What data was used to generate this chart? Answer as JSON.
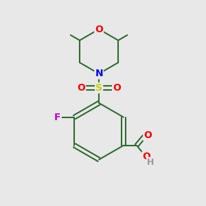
{
  "background_color": "#e8e8e8",
  "bond_color": "#2d6b2d",
  "bond_width": 1.5,
  "atom_colors": {
    "O": "#ff0000",
    "N": "#0000ff",
    "S": "#cccc00",
    "F": "#cc00cc",
    "C": "#2d6b2d",
    "H": "#999999"
  },
  "font_size": 10,
  "figsize": [
    3.0,
    3.0
  ],
  "dpi": 100
}
